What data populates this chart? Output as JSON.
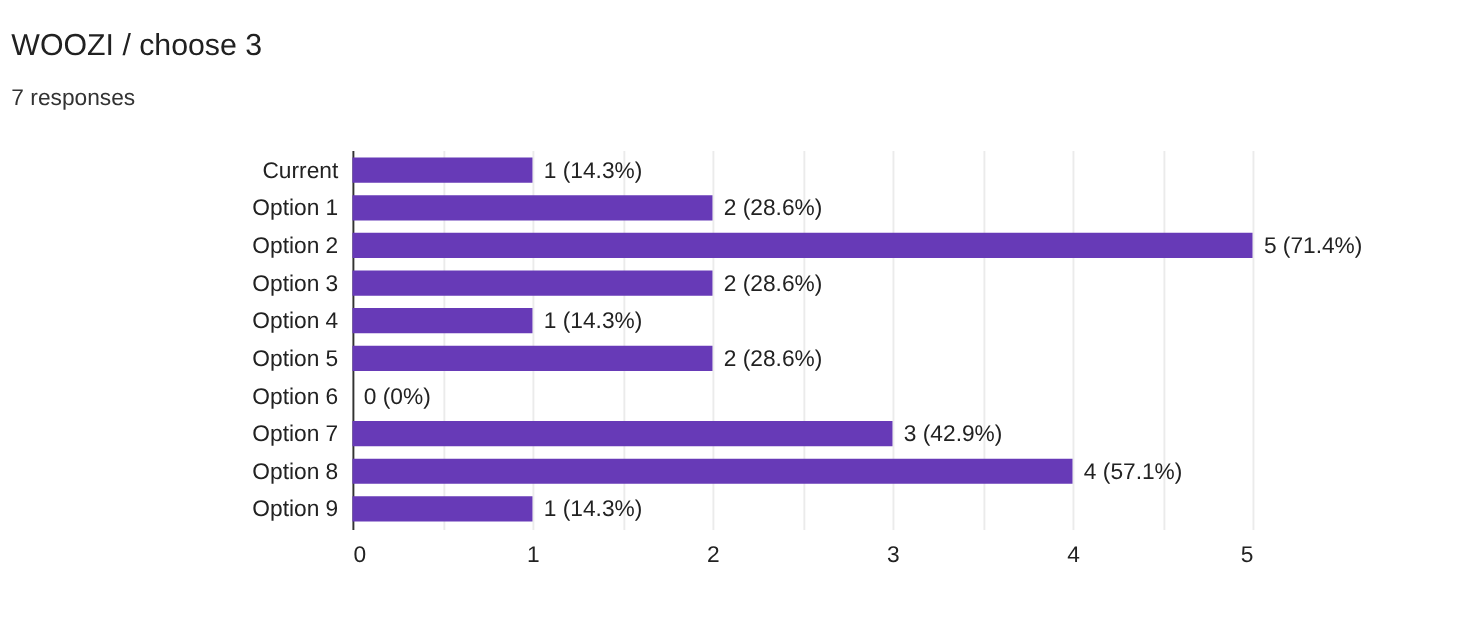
{
  "chart_data": {
    "type": "bar",
    "orientation": "horizontal",
    "title": "WOOZI / choose 3",
    "subtitle": "7 responses",
    "categories": [
      "Current",
      "Option 1",
      "Option 2",
      "Option 3",
      "Option 4",
      "Option 5",
      "Option 6",
      "Option 7",
      "Option 8",
      "Option 9"
    ],
    "values": [
      1,
      2,
      5,
      2,
      1,
      2,
      0,
      3,
      4,
      1
    ],
    "value_labels": [
      "1 (14.3%)",
      "2 (28.6%)",
      "5 (71.4%)",
      "2 (28.6%)",
      "1 (14.3%)",
      "2 (28.6%)",
      "0 (0%)",
      "3 (42.9%)",
      "4 (57.1%)",
      "1 (14.3%)"
    ],
    "color": "#673ab7",
    "xlim": [
      0,
      5
    ],
    "xticks": [
      0,
      {
        "value": 0.5,
        "label": null
      },
      1,
      {
        "value": 1.5,
        "label": null
      },
      2,
      {
        "value": 2.5,
        "label": null
      },
      3,
      {
        "value": 3.5,
        "label": null
      },
      4,
      {
        "value": 4.5,
        "label": null
      },
      5
    ],
    "grid": "x"
  }
}
